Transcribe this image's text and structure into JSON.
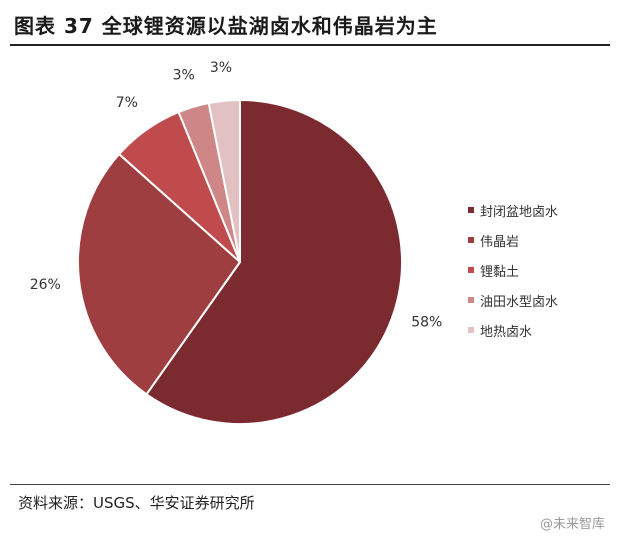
{
  "title": "图表 37 全球锂资源以盐湖卤水和伟晶岩为主",
  "source": "资料来源：USGS、华安证券研究所",
  "watermark": "@未来智库",
  "chart_data": {
    "type": "pie",
    "title": "图表 37 全球锂资源以盐湖卤水和伟晶岩为主",
    "legend_position": "right",
    "slices": [
      {
        "label": "封闭盆地卤水",
        "value": 58,
        "value_label": "58%",
        "color": "#7b2a30"
      },
      {
        "label": "伟晶岩",
        "value": 26,
        "value_label": "26%",
        "color": "#9e3e40"
      },
      {
        "label": "锂黏土",
        "value": 7,
        "value_label": "7%",
        "color": "#bf4b4d"
      },
      {
        "label": "油田水型卤水",
        "value": 3,
        "value_label": "3%",
        "color": "#cf8686"
      },
      {
        "label": "地热卤水",
        "value": 3,
        "value_label": "3%",
        "color": "#e3c1c3"
      }
    ]
  }
}
